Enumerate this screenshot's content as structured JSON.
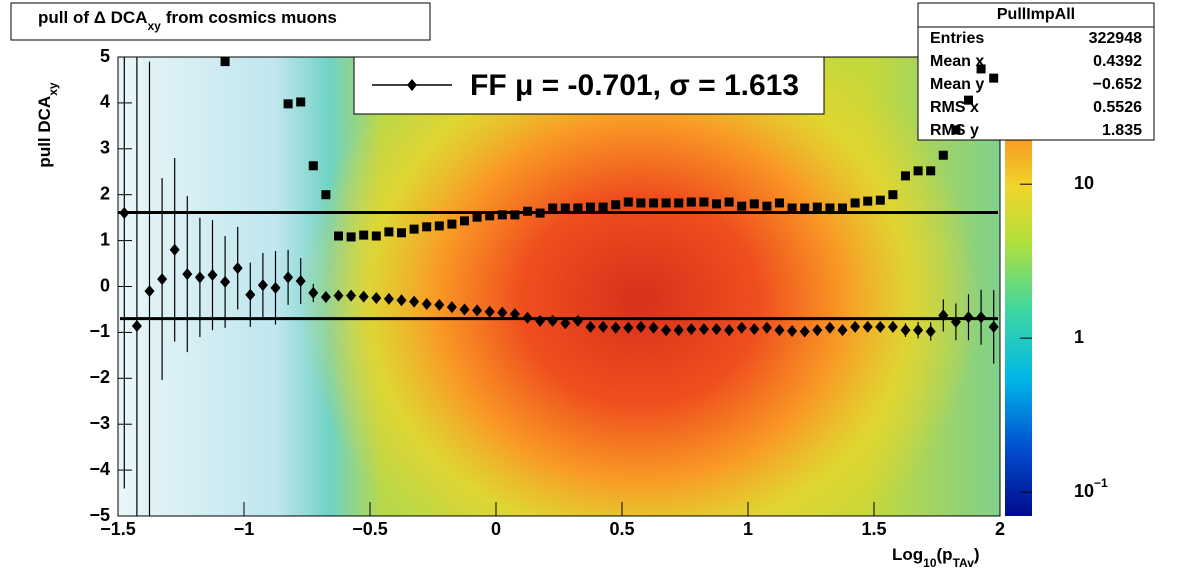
{
  "chart_data": {
    "type": "profile2d",
    "title": [
      "pull of Δ DCA",
      "xy",
      "from cosmics muons"
    ],
    "y_label": [
      "pull DCA",
      "xy"
    ],
    "x_label": [
      "Log",
      "10",
      "(p",
      "TAv",
      ")"
    ],
    "legend_text": "FF μ = -0.701, σ =   1.613",
    "mu": -0.701,
    "sigma": 1.613,
    "xlim": [
      -1.5,
      2
    ],
    "ylim": [
      -5,
      5
    ],
    "xticks": [
      {
        "value": -1.5,
        "label": "−1.5"
      },
      {
        "value": -1,
        "label": "−1"
      },
      {
        "value": -0.5,
        "label": "−0.5"
      },
      0,
      0.5,
      1,
      1.5,
      2
    ],
    "yticks": [
      {
        "value": -5,
        "label": "−5"
      },
      {
        "value": -4,
        "label": "−4"
      },
      {
        "value": -3,
        "label": "−3"
      },
      {
        "value": -2,
        "label": "−2"
      },
      {
        "value": -1,
        "label": "−1"
      },
      0,
      1,
      2,
      3,
      4,
      5
    ],
    "zlim": [
      0.07,
      67
    ],
    "zlog": true,
    "zticks": [
      {
        "value": 0.1,
        "label": "10",
        "exponent": "−1"
      },
      1,
      10
    ],
    "x": [
      -1.475,
      -1.425,
      -1.375,
      -1.325,
      -1.275,
      -1.225,
      -1.175,
      -1.125,
      -1.075,
      -1.025,
      -0.975,
      -0.925,
      -0.875,
      -0.825,
      -0.775,
      -0.725,
      -0.675,
      -0.625,
      -0.575,
      -0.525,
      -0.475,
      -0.425,
      -0.375,
      -0.325,
      -0.275,
      -0.225,
      -0.175,
      -0.125,
      -0.075,
      -0.025,
      0.025,
      0.075,
      0.125,
      0.175,
      0.225,
      0.275,
      0.325,
      0.375,
      0.425,
      0.475,
      0.525,
      0.575,
      0.625,
      0.675,
      0.725,
      0.775,
      0.825,
      0.875,
      0.925,
      0.975,
      1.025,
      1.075,
      1.125,
      1.175,
      1.225,
      1.275,
      1.325,
      1.375,
      1.425,
      1.475,
      1.525,
      1.575,
      1.625,
      1.675,
      1.725,
      1.775,
      1.825,
      1.875,
      1.925,
      1.975
    ],
    "series": [
      {
        "marker": "square",
        "color": "#000000",
        "values": [
          null,
          null,
          null,
          null,
          null,
          null,
          null,
          null,
          4.9,
          null,
          null,
          null,
          null,
          3.98,
          4.02,
          2.63,
          2.0,
          1.1,
          1.08,
          1.12,
          1.1,
          1.19,
          1.17,
          1.25,
          1.3,
          1.32,
          1.36,
          1.43,
          1.51,
          1.54,
          1.56,
          1.56,
          1.64,
          1.6,
          1.71,
          1.71,
          1.71,
          1.73,
          1.73,
          1.78,
          1.84,
          1.82,
          1.82,
          1.82,
          1.82,
          1.84,
          1.84,
          1.8,
          1.84,
          1.75,
          1.8,
          1.75,
          1.82,
          1.71,
          1.71,
          1.73,
          1.71,
          1.71,
          1.82,
          1.86,
          1.88,
          2.0,
          2.41,
          2.52,
          2.52,
          2.86,
          3.41,
          4.06,
          4.74,
          4.54
        ]
      },
      {
        "marker": "diamond",
        "color": "#000000",
        "values": [
          1.6,
          -0.86,
          -0.1,
          0.16,
          0.8,
          0.27,
          0.2,
          0.25,
          0.1,
          0.4,
          -0.18,
          0.03,
          -0.03,
          0.2,
          0.12,
          -0.14,
          -0.23,
          -0.2,
          -0.2,
          -0.22,
          -0.25,
          -0.27,
          -0.3,
          -0.33,
          -0.38,
          -0.4,
          -0.45,
          -0.5,
          -0.52,
          -0.55,
          -0.57,
          -0.6,
          -0.68,
          -0.75,
          -0.75,
          -0.8,
          -0.75,
          -0.88,
          -0.88,
          -0.9,
          -0.9,
          -0.88,
          -0.9,
          -0.95,
          -0.95,
          -0.93,
          -0.93,
          -0.93,
          -0.95,
          -0.9,
          -0.93,
          -0.9,
          -0.95,
          -0.97,
          -0.98,
          -0.95,
          -0.9,
          -0.95,
          -0.88,
          -0.88,
          -0.88,
          -0.88,
          -0.95,
          -0.95,
          -0.98,
          -0.63,
          -0.77,
          -0.67,
          -0.67,
          -0.88
        ],
        "errors": [
          6,
          6,
          5,
          2.2,
          2,
          1.7,
          1.3,
          1.2,
          1.0,
          0.9,
          0.7,
          0.7,
          0.8,
          0.6,
          0.5,
          0.2,
          0.12,
          0.08,
          0.07,
          0.06,
          0.06,
          0.05,
          0.05,
          0.05,
          0.05,
          0.05,
          0.05,
          0.05,
          0.05,
          0.05,
          0.05,
          0.05,
          0.05,
          0.05,
          0.05,
          0.05,
          0.05,
          0.05,
          0.05,
          0.05,
          0.05,
          0.05,
          0.05,
          0.05,
          0.05,
          0.05,
          0.05,
          0.05,
          0.05,
          0.05,
          0.05,
          0.05,
          0.05,
          0.06,
          0.06,
          0.06,
          0.06,
          0.07,
          0.08,
          0.09,
          0.1,
          0.12,
          0.15,
          0.18,
          0.2,
          0.35,
          0.4,
          0.5,
          0.6,
          0.8
        ]
      }
    ],
    "stats": {
      "title": "PullImpAll",
      "rows": [
        [
          "Entries",
          "322948"
        ],
        [
          "Mean x",
          "0.4392"
        ],
        [
          "Mean y",
          "−0.652"
        ],
        [
          "RMS x",
          "0.5526"
        ],
        [
          "RMS y",
          "1.835"
        ]
      ]
    }
  }
}
